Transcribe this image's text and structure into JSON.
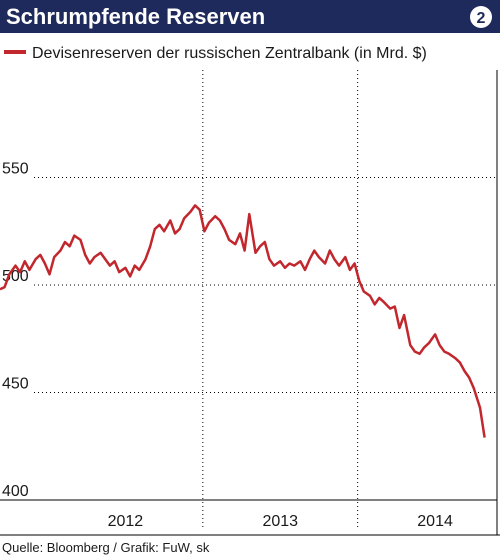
{
  "badge": "2",
  "source": "Quelle: Bloomberg / Grafik: FuW, sk",
  "chart_data": {
    "type": "line",
    "title": "Schrumpfende Reserven",
    "series": [
      {
        "name": "Devisenreserven der russischen Zentralbank (in Mrd. $)",
        "color": "#c1272d",
        "values": [
          498,
          499,
          505,
          509,
          506,
          511,
          507,
          512,
          514,
          510,
          505,
          513,
          516,
          520,
          518,
          523,
          521,
          514,
          510,
          513,
          515,
          512,
          509,
          511,
          506,
          508,
          504,
          509,
          507,
          512,
          518,
          526,
          528,
          525,
          530,
          524,
          526,
          531,
          534,
          537,
          535,
          525,
          529,
          532,
          530,
          526,
          521,
          519,
          524,
          516,
          533,
          515,
          518,
          520,
          512,
          509,
          511,
          508,
          510,
          509,
          511,
          507,
          512,
          516,
          513,
          510,
          516,
          512,
          509,
          513,
          507,
          510,
          502,
          497,
          495,
          491,
          494,
          492,
          489,
          490,
          480,
          486,
          472,
          469,
          468,
          471,
          473,
          477,
          472,
          469,
          468,
          466,
          464,
          460,
          457,
          452,
          443,
          429
        ]
      }
    ],
    "x": [
      2011.69,
      2011.72,
      2011.75,
      2011.79,
      2011.82,
      2011.85,
      2011.88,
      2011.92,
      2011.95,
      2011.98,
      2012.01,
      2012.04,
      2012.08,
      2012.11,
      2012.14,
      2012.17,
      2012.21,
      2012.24,
      2012.27,
      2012.3,
      2012.34,
      2012.37,
      2012.4,
      2012.43,
      2012.46,
      2012.5,
      2012.53,
      2012.56,
      2012.59,
      2012.63,
      2012.66,
      2012.69,
      2012.72,
      2012.75,
      2012.79,
      2012.82,
      2012.85,
      2012.88,
      2012.92,
      2012.95,
      2012.98,
      2013.01,
      2013.04,
      2013.08,
      2013.11,
      2013.14,
      2013.17,
      2013.21,
      2013.24,
      2013.27,
      2013.3,
      2013.34,
      2013.37,
      2013.4,
      2013.43,
      2013.46,
      2013.5,
      2013.53,
      2013.56,
      2013.59,
      2013.63,
      2013.66,
      2013.69,
      2013.72,
      2013.75,
      2013.79,
      2013.82,
      2013.85,
      2013.88,
      2013.92,
      2013.95,
      2013.98,
      2014.01,
      2014.04,
      2014.08,
      2014.11,
      2014.14,
      2014.17,
      2014.21,
      2014.24,
      2014.27,
      2014.3,
      2014.34,
      2014.37,
      2014.4,
      2014.43,
      2014.46,
      2014.5,
      2014.53,
      2014.56,
      2014.59,
      2014.63,
      2014.66,
      2014.69,
      2014.72,
      2014.75,
      2014.79,
      2014.82
    ],
    "xlim": [
      2011.69,
      2014.9
    ],
    "xticks": [
      {
        "value": 2012.5,
        "label": "2012"
      },
      {
        "value": 2013.5,
        "label": "2013"
      },
      {
        "value": 2014.5,
        "label": "2014"
      }
    ],
    "xgrid": [
      2013,
      2014
    ],
    "ylim": [
      400,
      600
    ],
    "yticks": [
      400,
      450,
      500,
      550
    ],
    "grid": true
  }
}
